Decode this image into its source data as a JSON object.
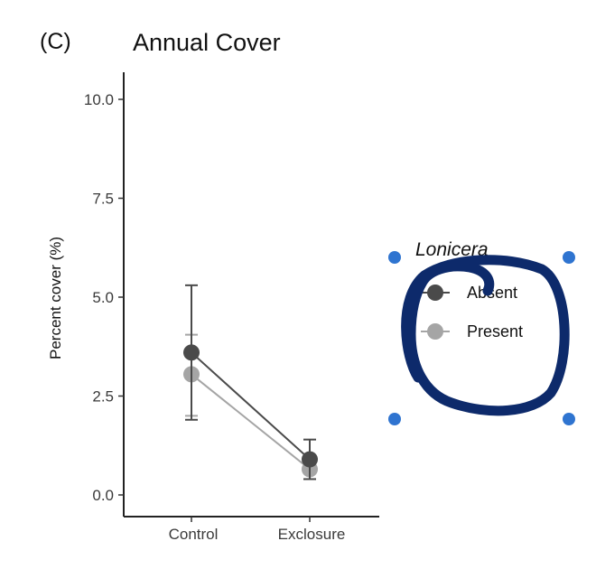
{
  "figure": {
    "panel_label": "(C)"
  },
  "chart_data": {
    "type": "line",
    "title": "Annual Cover",
    "xlabel": "",
    "ylabel": "Percent cover (%)",
    "categories": [
      "Control",
      "Exclosure"
    ],
    "ylim": [
      0,
      10
    ],
    "yticks": [
      "0.0",
      "2.5",
      "5.0",
      "7.5",
      "10.0"
    ],
    "grid": false,
    "legend": {
      "title": "Lonicera",
      "position": "right"
    },
    "series": [
      {
        "name": "Absent",
        "color": "#4a4a4a",
        "values": [
          3.6,
          0.9
        ],
        "err_low": [
          1.9,
          0.4
        ],
        "err_high": [
          5.3,
          1.4
        ]
      },
      {
        "name": "Present",
        "color": "#a5a5a5",
        "values": [
          3.05,
          0.65
        ],
        "err_low": [
          2.0,
          0.4
        ],
        "err_high": [
          4.05,
          0.9
        ]
      }
    ]
  },
  "annotation": {
    "stroke_color": "#0d2a6b",
    "handle_color": "#2f74d0"
  }
}
